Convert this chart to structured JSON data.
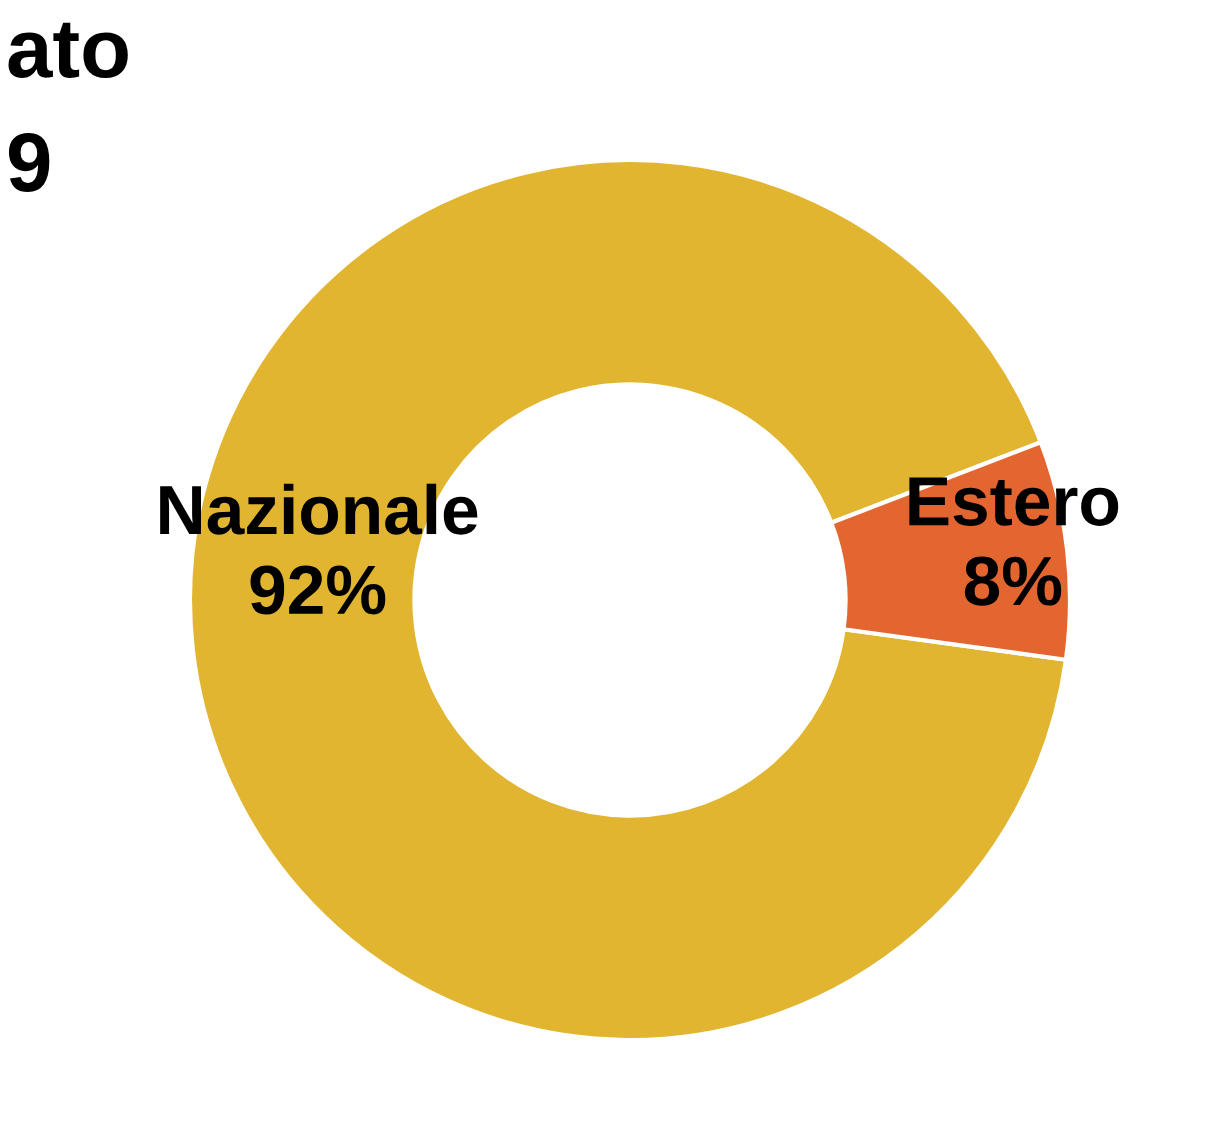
{
  "chart_data": {
    "type": "donut",
    "title": "ato\n9",
    "categories": [
      "Nazionale",
      "Estero"
    ],
    "values": [
      92,
      8
    ],
    "colors": [
      "#e1b530",
      "#e36530"
    ],
    "value_labels": [
      "92%",
      "8%"
    ],
    "legend": false
  }
}
